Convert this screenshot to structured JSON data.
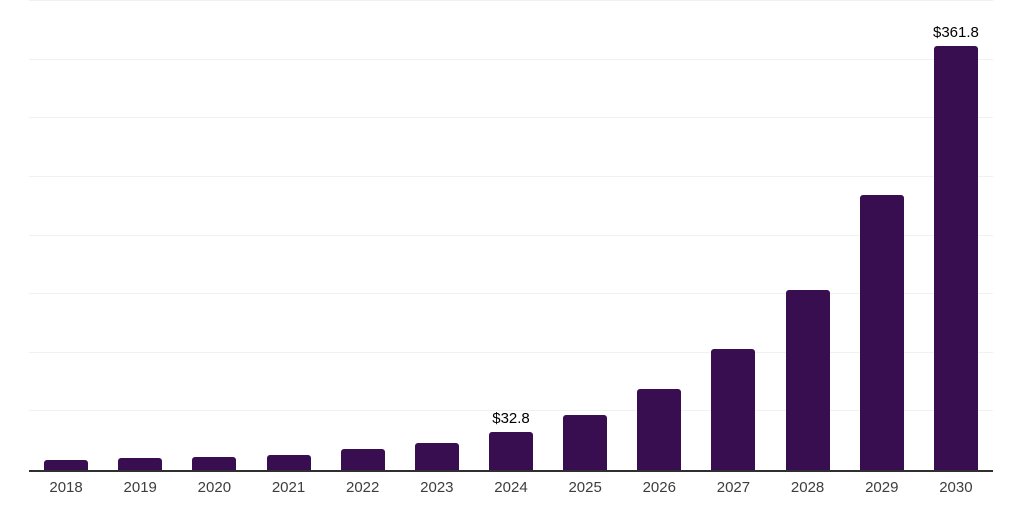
{
  "chart_data": {
    "type": "bar",
    "categories": [
      "2018",
      "2019",
      "2020",
      "2021",
      "2022",
      "2023",
      "2024",
      "2025",
      "2026",
      "2027",
      "2028",
      "2029",
      "2030"
    ],
    "values": [
      8.9,
      10.4,
      10.7,
      12.9,
      17.8,
      23.4,
      32.8,
      47.1,
      69.0,
      103.5,
      153.7,
      235.0,
      361.8
    ],
    "annotations": [
      {
        "category": "2024",
        "text": "$32.8"
      },
      {
        "category": "2030",
        "text": "$361.8"
      }
    ],
    "title": "",
    "xlabel": "",
    "ylabel": "",
    "ylim": [
      0,
      400
    ],
    "gridline_step": 50,
    "grid": true,
    "legend": false,
    "colors": {
      "bar": "#380E50",
      "axis_line": "#2f2f2f",
      "gridline": "#f1f1f1",
      "x_label": "#3d3d3d",
      "data_label": "#000000",
      "background": "#ffffff"
    }
  }
}
